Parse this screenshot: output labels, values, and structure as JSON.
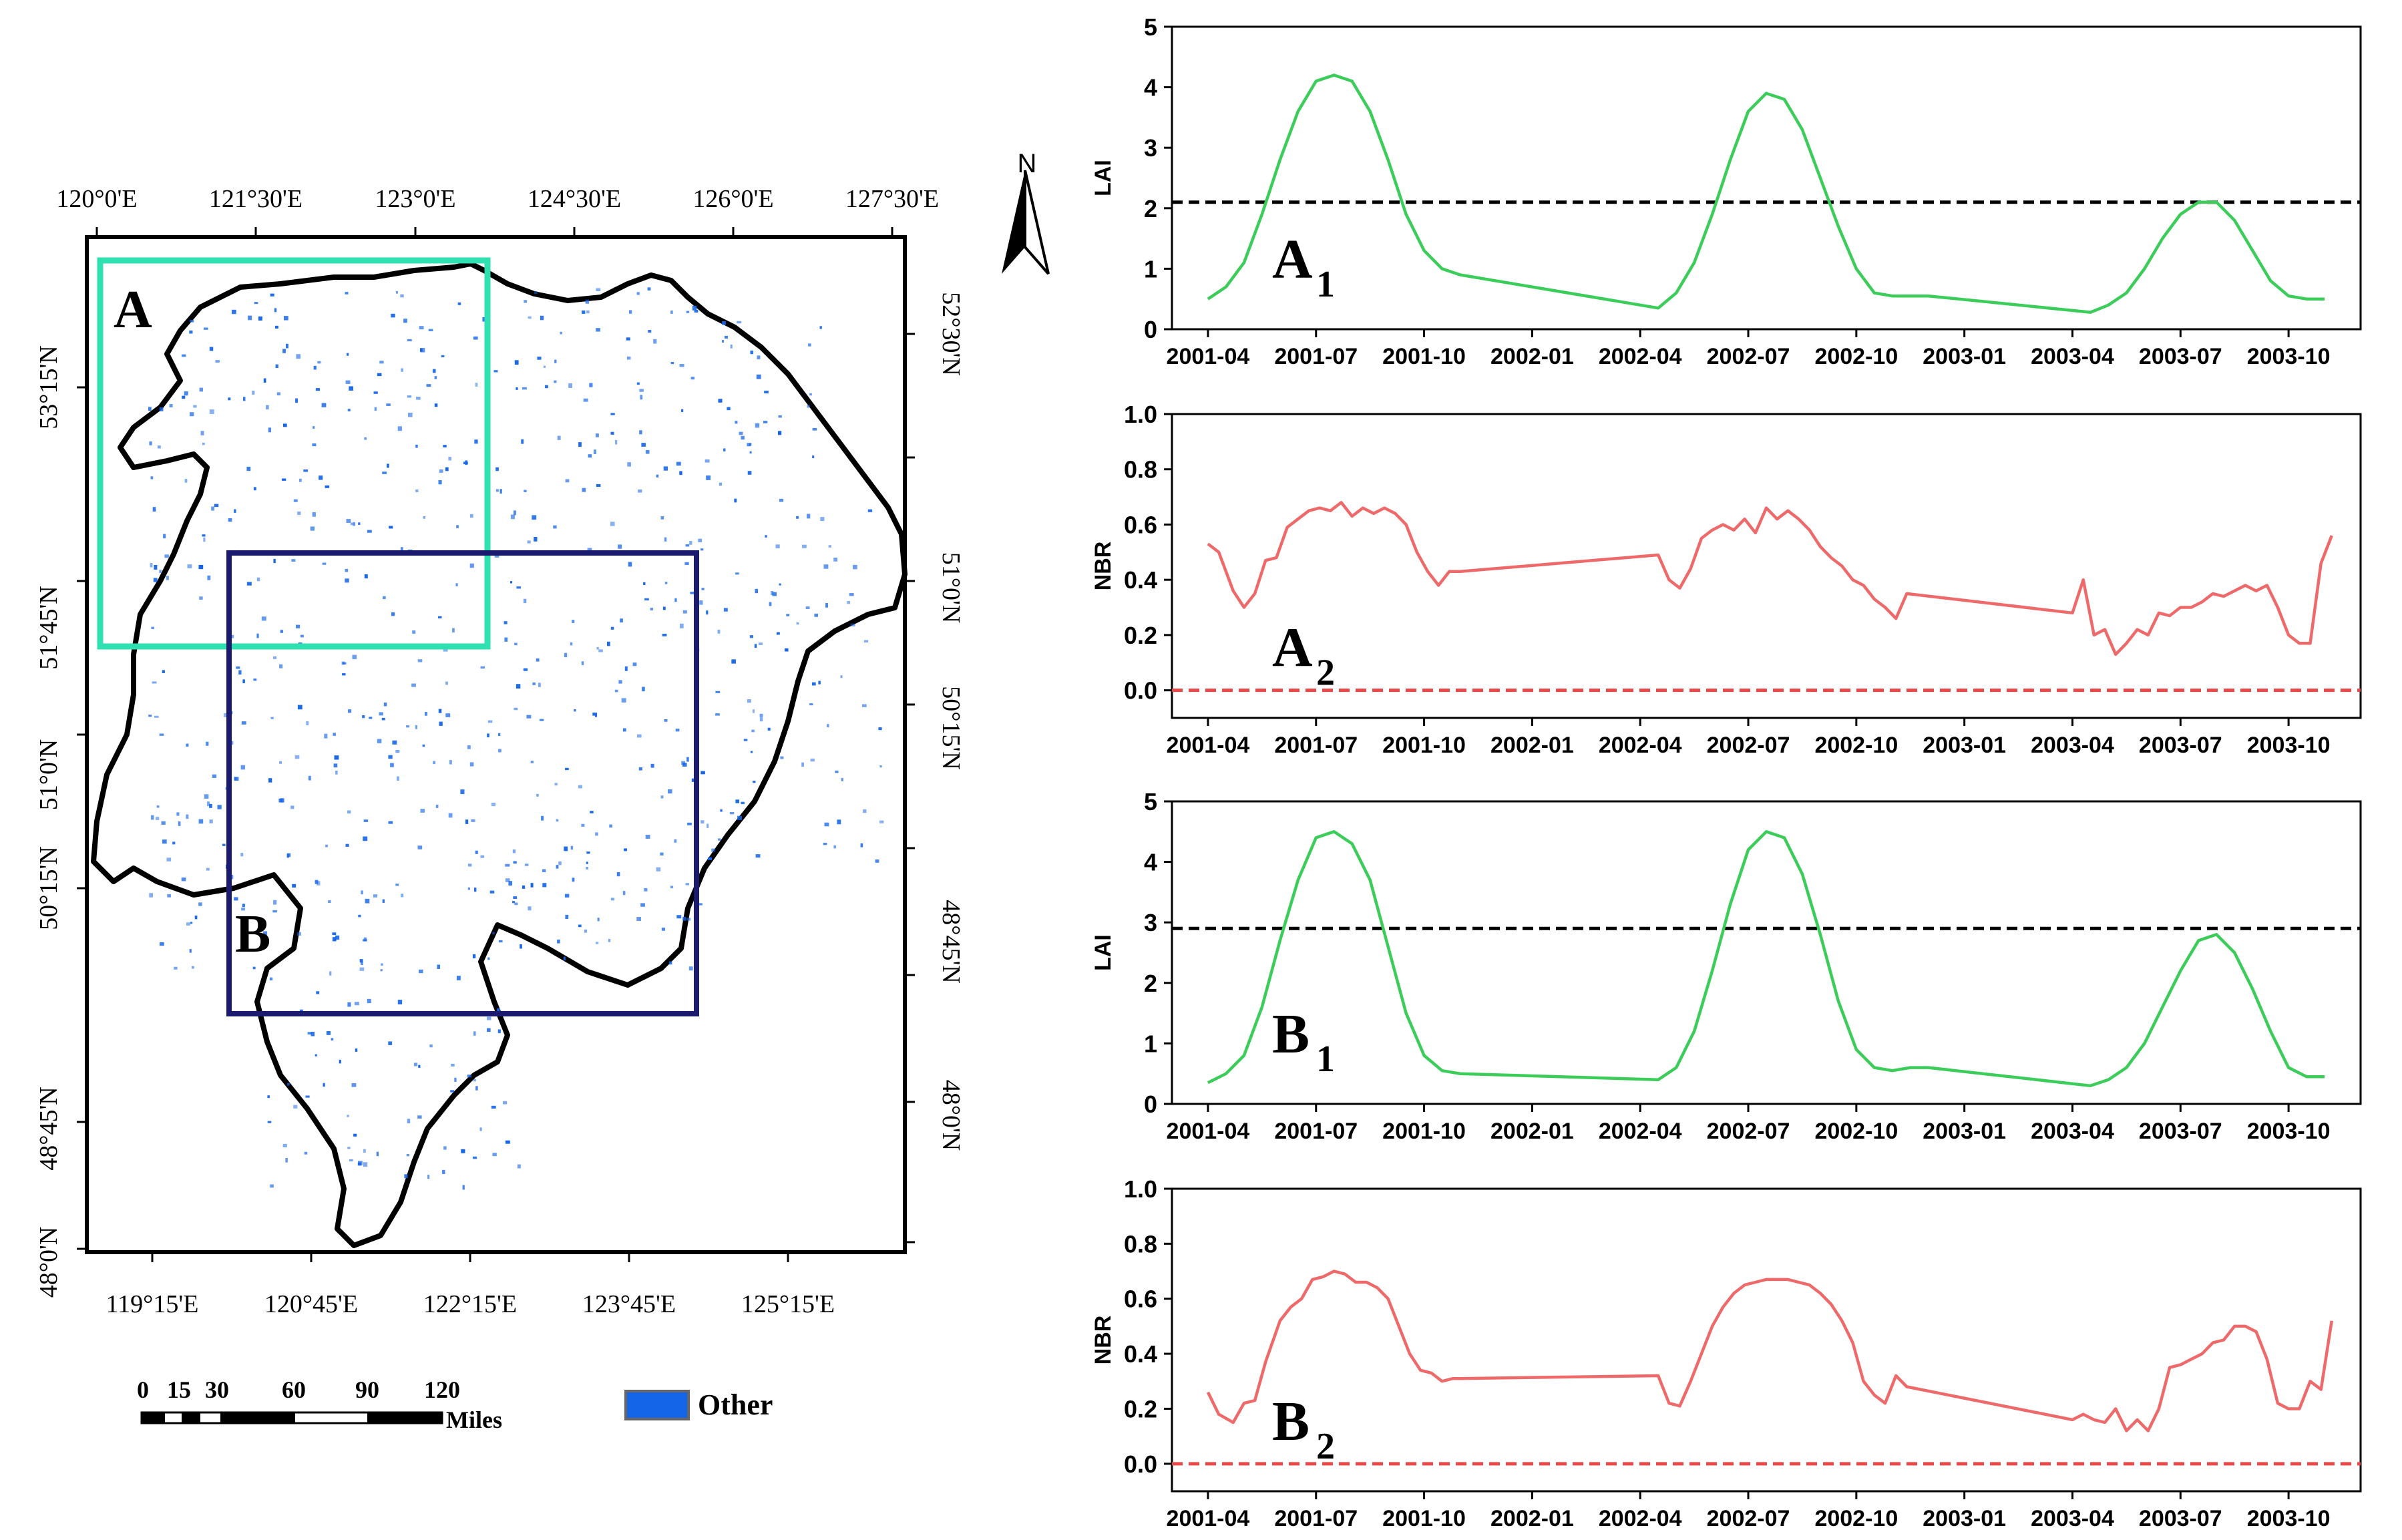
{
  "map": {
    "top_ticks": [
      "120°0'E",
      "121°30'E",
      "123°0'E",
      "124°30'E",
      "126°0'E",
      "127°30'E"
    ],
    "bottom_ticks": [
      "119°15'E",
      "120°45'E",
      "122°15'E",
      "123°45'E",
      "125°15'E"
    ],
    "left_ticks": [
      "53°15'N",
      "51°45'N",
      "51°0'N",
      "50°15'N",
      "48°45'N",
      "48°0'N"
    ],
    "right_ticks": [
      "52°30'N",
      "51°0'N",
      "50°15'N",
      "48°45'N",
      "48°0'N"
    ],
    "north_label": "N",
    "box_a_label": "A",
    "box_b_label": "B",
    "box_a_color": "#2fe0b0",
    "box_b_color": "#1a1a6e",
    "scale_ticks": [
      "0",
      "15",
      "30",
      "60",
      "90",
      "120"
    ],
    "scale_unit": "Miles",
    "legend_label": "Other",
    "legend_color": "#1565e8"
  },
  "chart_data": [
    {
      "type": "line",
      "panel": "A1",
      "label_main": "A",
      "label_sub": "1",
      "ylabel": "LAI",
      "ylim": [
        0,
        5
      ],
      "yticks": [
        "0",
        "1",
        "2",
        "3",
        "4",
        "5"
      ],
      "threshold": 2.1,
      "threshold_color": "#000000",
      "line_color": "#3ccc5a",
      "x_ticks": [
        {
          "label": "2001-04",
          "t": 0
        },
        {
          "label": "2001-07",
          "t": 3
        },
        {
          "label": "2001-10",
          "t": 6
        },
        {
          "label": "2002-01",
          "t": 9
        },
        {
          "label": "2002-04",
          "t": 12
        },
        {
          "label": "2002-07",
          "t": 15
        },
        {
          "label": "2002-10",
          "t": 18
        },
        {
          "label": "2003-01",
          "t": 21
        },
        {
          "label": "2003-04",
          "t": 24
        },
        {
          "label": "2003-07",
          "t": 27
        },
        {
          "label": "2003-10",
          "t": 30
        }
      ],
      "x": [
        0,
        0.5,
        1,
        1.5,
        2,
        2.5,
        3,
        3.5,
        4,
        4.5,
        5,
        5.5,
        6,
        6.5,
        7,
        12.5,
        13,
        13.5,
        14,
        14.5,
        15,
        15.5,
        16,
        16.5,
        17,
        17.5,
        18,
        18.5,
        19,
        19.5,
        20,
        24.5,
        25,
        25.5,
        26,
        26.5,
        27,
        27.5,
        28,
        28.5,
        29,
        29.5,
        30,
        30.5,
        31
      ],
      "values": [
        0.5,
        0.7,
        1.1,
        1.9,
        2.8,
        3.6,
        4.1,
        4.2,
        4.1,
        3.6,
        2.8,
        1.9,
        1.3,
        1.0,
        0.9,
        0.35,
        0.6,
        1.1,
        1.9,
        2.8,
        3.6,
        3.9,
        3.8,
        3.3,
        2.5,
        1.7,
        1.0,
        0.6,
        0.55,
        0.55,
        0.55,
        0.28,
        0.4,
        0.6,
        1.0,
        1.5,
        1.9,
        2.1,
        2.1,
        1.8,
        1.3,
        0.8,
        0.55,
        0.5,
        0.5
      ]
    },
    {
      "type": "line",
      "panel": "A2",
      "label_main": "A",
      "label_sub": "2",
      "ylabel": "NBR",
      "ylim": [
        -0.1,
        1.0
      ],
      "yticks": [
        "0.0",
        "0.2",
        "0.4",
        "0.6",
        "0.8",
        "1.0"
      ],
      "threshold": 0.0,
      "threshold_color": "#e84848",
      "line_color": "#ee6a6a",
      "x_ticks": [
        {
          "label": "2001-04",
          "t": 0
        },
        {
          "label": "2001-07",
          "t": 3
        },
        {
          "label": "2001-10",
          "t": 6
        },
        {
          "label": "2002-01",
          "t": 9
        },
        {
          "label": "2002-04",
          "t": 12
        },
        {
          "label": "2002-07",
          "t": 15
        },
        {
          "label": "2002-10",
          "t": 18
        },
        {
          "label": "2003-01",
          "t": 21
        },
        {
          "label": "2003-04",
          "t": 24
        },
        {
          "label": "2003-07",
          "t": 27
        },
        {
          "label": "2003-10",
          "t": 30
        }
      ],
      "x": [
        0,
        0.3,
        0.7,
        1,
        1.3,
        1.6,
        1.9,
        2.2,
        2.5,
        2.8,
        3.1,
        3.4,
        3.7,
        4,
        4.3,
        4.6,
        4.9,
        5.2,
        5.5,
        5.8,
        6.1,
        6.4,
        6.7,
        7,
        12.5,
        12.8,
        13.1,
        13.4,
        13.7,
        14,
        14.3,
        14.6,
        14.9,
        15.2,
        15.5,
        15.8,
        16.1,
        16.4,
        16.7,
        17,
        17.3,
        17.6,
        17.9,
        18.2,
        18.5,
        18.8,
        19.1,
        19.4,
        24,
        24.3,
        24.6,
        24.9,
        25.2,
        25.5,
        25.8,
        26.1,
        26.4,
        26.7,
        27,
        27.3,
        27.6,
        27.9,
        28.2,
        28.5,
        28.8,
        29.1,
        29.4,
        29.7,
        30,
        30.3,
        30.6,
        30.9,
        31.2
      ],
      "values": [
        0.53,
        0.5,
        0.36,
        0.3,
        0.35,
        0.47,
        0.48,
        0.59,
        0.62,
        0.65,
        0.66,
        0.65,
        0.68,
        0.63,
        0.66,
        0.64,
        0.66,
        0.64,
        0.6,
        0.5,
        0.43,
        0.38,
        0.43,
        0.43,
        0.49,
        0.4,
        0.37,
        0.44,
        0.55,
        0.58,
        0.6,
        0.58,
        0.62,
        0.57,
        0.66,
        0.62,
        0.65,
        0.62,
        0.58,
        0.52,
        0.48,
        0.45,
        0.4,
        0.38,
        0.33,
        0.3,
        0.26,
        0.35,
        0.28,
        0.4,
        0.2,
        0.22,
        0.13,
        0.17,
        0.22,
        0.2,
        0.28,
        0.27,
        0.3,
        0.3,
        0.32,
        0.35,
        0.34,
        0.36,
        0.38,
        0.36,
        0.38,
        0.3,
        0.2,
        0.17,
        0.17,
        0.46,
        0.56
      ]
    },
    {
      "type": "line",
      "panel": "B1",
      "label_main": "B",
      "label_sub": "1",
      "ylabel": "LAI",
      "ylim": [
        0,
        5
      ],
      "yticks": [
        "0",
        "1",
        "2",
        "3",
        "4",
        "5"
      ],
      "threshold": 2.9,
      "threshold_color": "#000000",
      "line_color": "#3ccc5a",
      "x_ticks": [
        {
          "label": "2001-04",
          "t": 0
        },
        {
          "label": "2001-07",
          "t": 3
        },
        {
          "label": "2001-10",
          "t": 6
        },
        {
          "label": "2002-01",
          "t": 9
        },
        {
          "label": "2002-04",
          "t": 12
        },
        {
          "label": "2002-07",
          "t": 15
        },
        {
          "label": "2002-10",
          "t": 18
        },
        {
          "label": "2003-01",
          "t": 21
        },
        {
          "label": "2003-04",
          "t": 24
        },
        {
          "label": "2003-07",
          "t": 27
        },
        {
          "label": "2003-10",
          "t": 30
        }
      ],
      "x": [
        0,
        0.5,
        1,
        1.5,
        2,
        2.5,
        3,
        3.5,
        4,
        4.5,
        5,
        5.5,
        6,
        6.5,
        7,
        12.5,
        13,
        13.5,
        14,
        14.5,
        15,
        15.5,
        16,
        16.5,
        17,
        17.5,
        18,
        18.5,
        19,
        19.5,
        20,
        24.5,
        25,
        25.5,
        26,
        26.5,
        27,
        27.5,
        28,
        28.5,
        29,
        29.5,
        30,
        30.5,
        31
      ],
      "values": [
        0.35,
        0.5,
        0.8,
        1.6,
        2.7,
        3.7,
        4.4,
        4.5,
        4.3,
        3.7,
        2.6,
        1.5,
        0.8,
        0.55,
        0.5,
        0.4,
        0.6,
        1.2,
        2.2,
        3.3,
        4.2,
        4.5,
        4.4,
        3.8,
        2.8,
        1.7,
        0.9,
        0.6,
        0.55,
        0.6,
        0.6,
        0.3,
        0.4,
        0.6,
        1.0,
        1.6,
        2.2,
        2.7,
        2.8,
        2.5,
        1.9,
        1.2,
        0.6,
        0.45,
        0.45
      ]
    },
    {
      "type": "line",
      "panel": "B2",
      "label_main": "B",
      "label_sub": "2",
      "ylabel": "NBR",
      "ylim": [
        -0.1,
        1.0
      ],
      "yticks": [
        "0.0",
        "0.2",
        "0.4",
        "0.6",
        "0.8",
        "1.0"
      ],
      "threshold": 0.0,
      "threshold_color": "#e84848",
      "line_color": "#ee6a6a",
      "x_ticks": [
        {
          "label": "2001-04",
          "t": 0
        },
        {
          "label": "2001-07",
          "t": 3
        },
        {
          "label": "2001-10",
          "t": 6
        },
        {
          "label": "2002-01",
          "t": 9
        },
        {
          "label": "2002-04",
          "t": 12
        },
        {
          "label": "2002-07",
          "t": 15
        },
        {
          "label": "2002-10",
          "t": 18
        },
        {
          "label": "2003-01",
          "t": 21
        },
        {
          "label": "2003-04",
          "t": 24
        },
        {
          "label": "2003-07",
          "t": 27
        },
        {
          "label": "2003-10",
          "t": 30
        }
      ],
      "x": [
        0,
        0.3,
        0.7,
        1,
        1.3,
        1.6,
        2,
        2.3,
        2.6,
        2.9,
        3.2,
        3.5,
        3.8,
        4.1,
        4.4,
        4.7,
        5,
        5.3,
        5.6,
        5.9,
        6.2,
        6.5,
        6.8,
        7,
        12.5,
        12.8,
        13.1,
        13.4,
        13.7,
        14,
        14.3,
        14.6,
        14.9,
        15.2,
        15.5,
        15.8,
        16.1,
        16.4,
        16.7,
        17,
        17.3,
        17.6,
        17.9,
        18.2,
        18.5,
        18.8,
        19.1,
        19.4,
        24,
        24.3,
        24.6,
        24.9,
        25.2,
        25.5,
        25.8,
        26.1,
        26.4,
        26.7,
        27,
        27.3,
        27.6,
        27.9,
        28.2,
        28.5,
        28.8,
        29.1,
        29.4,
        29.7,
        30,
        30.3,
        30.6,
        30.9,
        31.2
      ],
      "values": [
        0.26,
        0.18,
        0.15,
        0.22,
        0.23,
        0.37,
        0.52,
        0.57,
        0.6,
        0.67,
        0.68,
        0.7,
        0.69,
        0.66,
        0.66,
        0.64,
        0.6,
        0.5,
        0.4,
        0.34,
        0.33,
        0.3,
        0.31,
        0.31,
        0.32,
        0.22,
        0.21,
        0.3,
        0.4,
        0.5,
        0.57,
        0.62,
        0.65,
        0.66,
        0.67,
        0.67,
        0.67,
        0.66,
        0.65,
        0.62,
        0.58,
        0.52,
        0.44,
        0.3,
        0.25,
        0.22,
        0.32,
        0.28,
        0.16,
        0.18,
        0.16,
        0.15,
        0.2,
        0.12,
        0.16,
        0.12,
        0.2,
        0.35,
        0.36,
        0.38,
        0.4,
        0.44,
        0.45,
        0.5,
        0.5,
        0.48,
        0.38,
        0.22,
        0.2,
        0.2,
        0.3,
        0.27,
        0.52
      ]
    }
  ]
}
